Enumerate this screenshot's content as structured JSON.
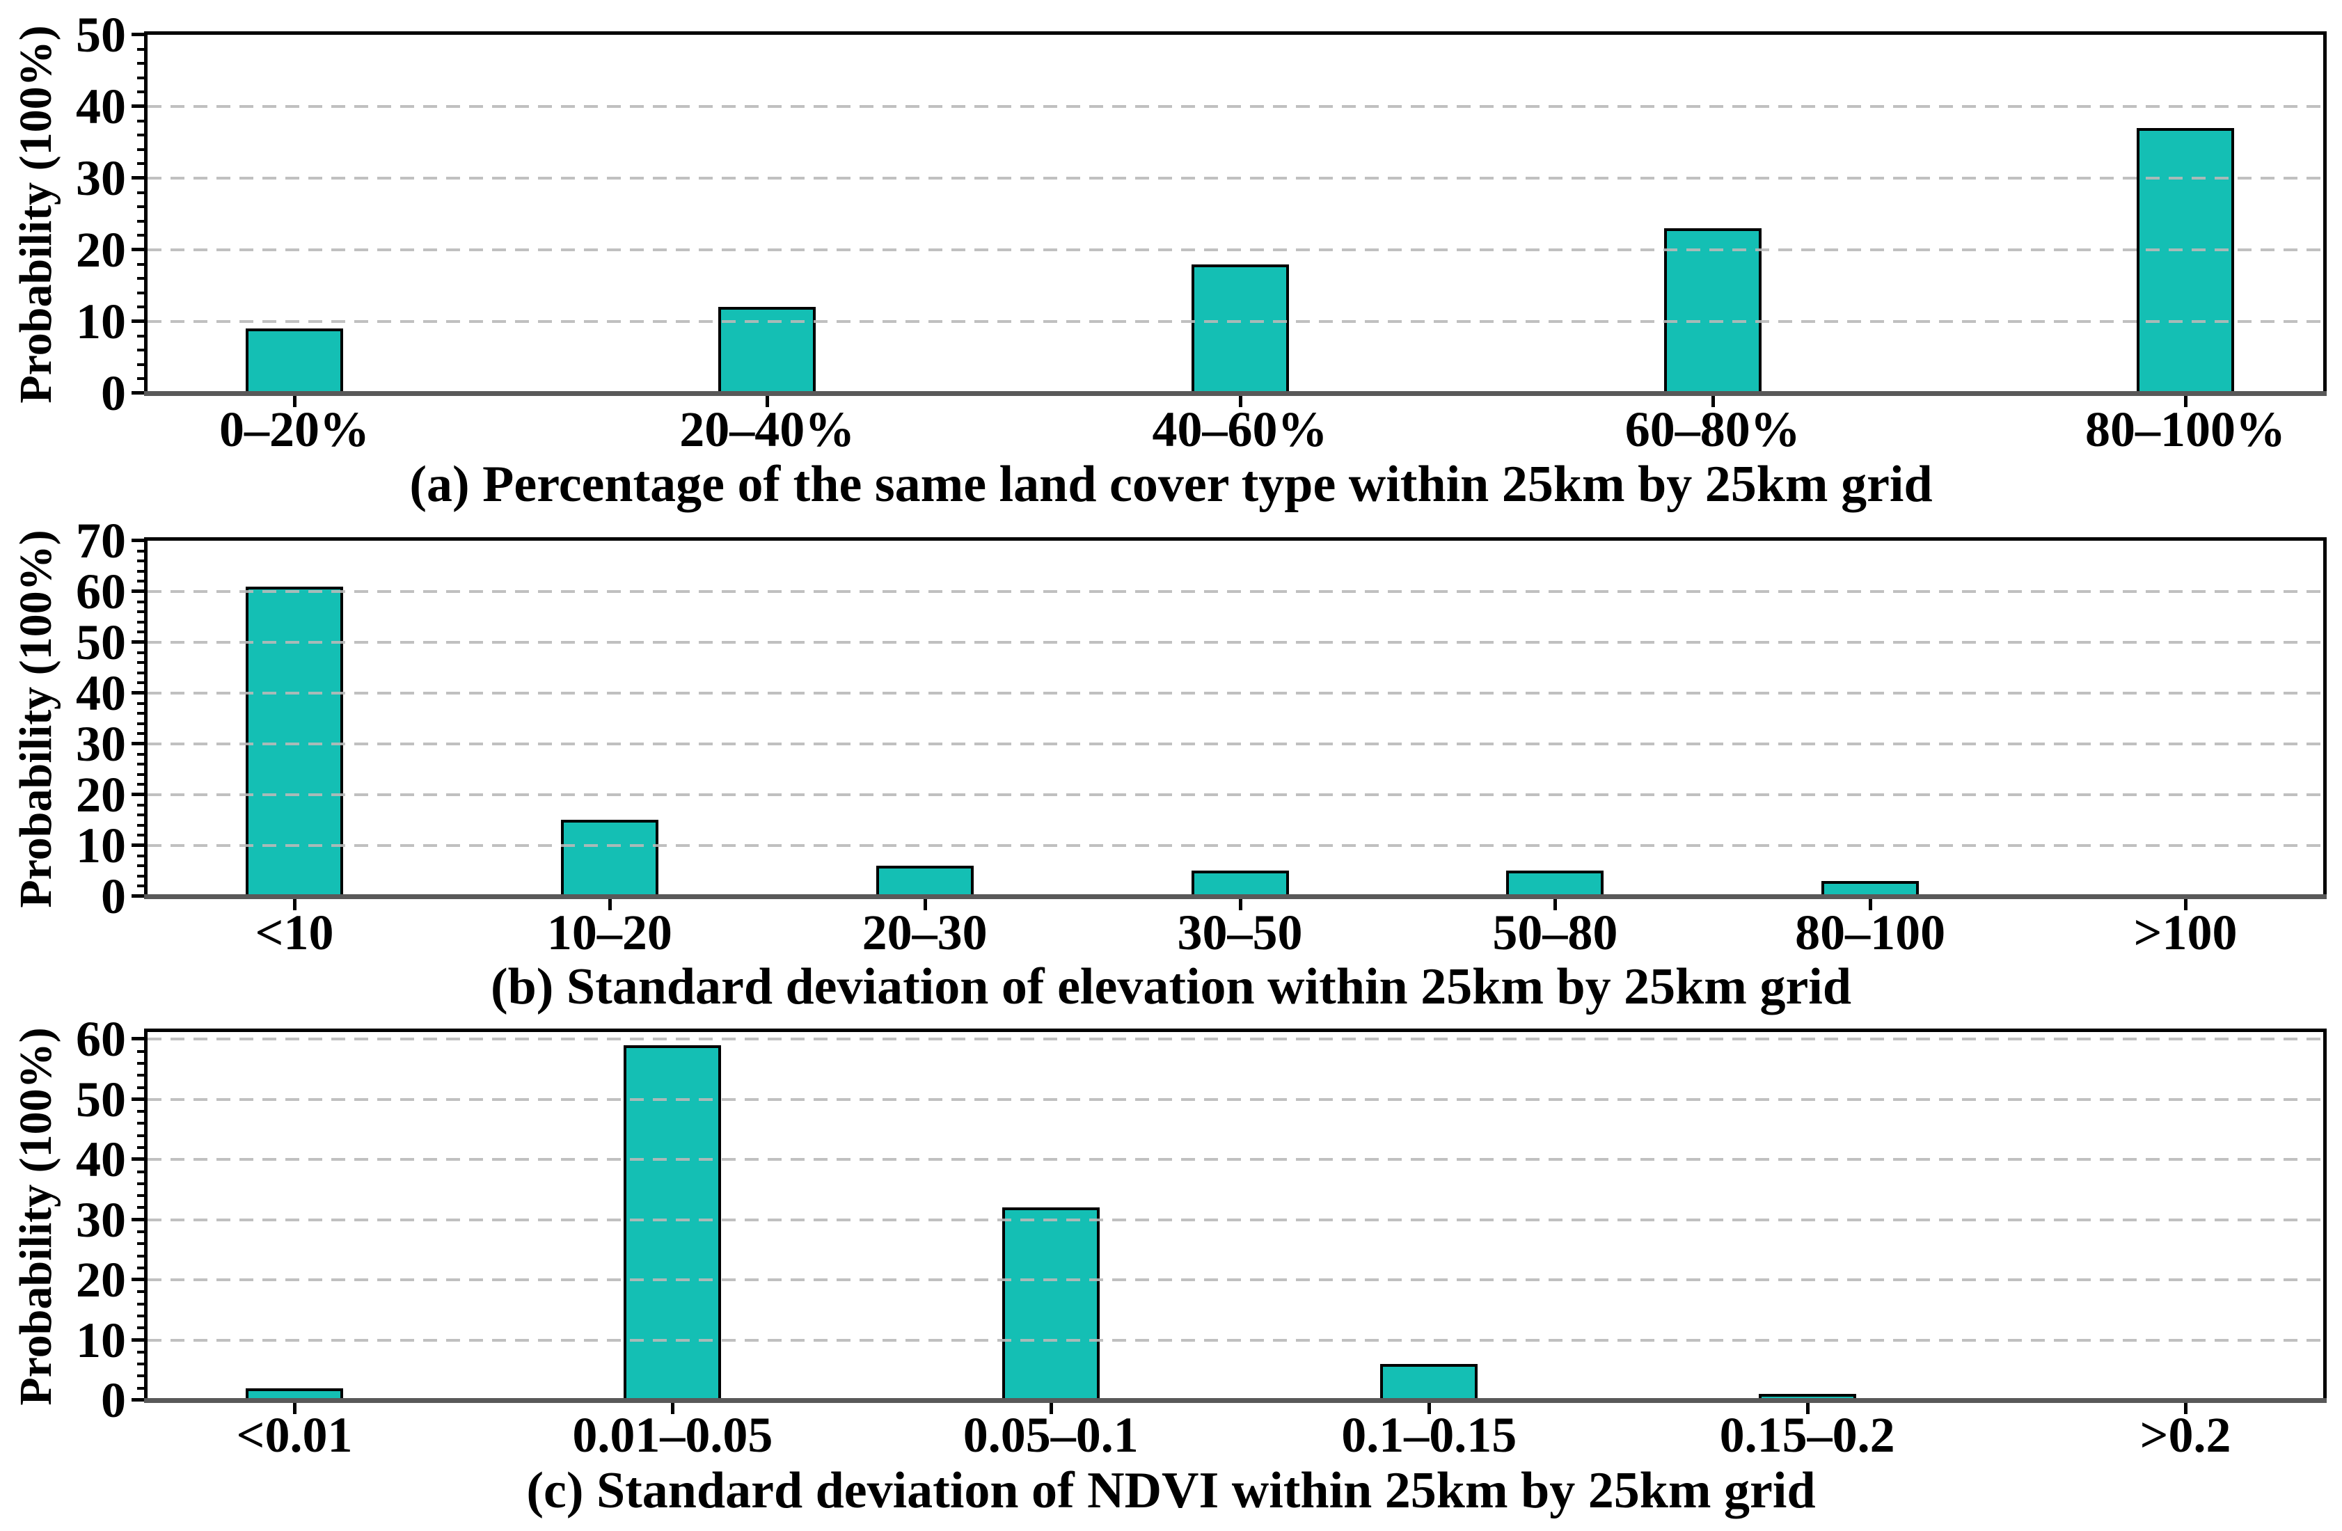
{
  "figure": {
    "ylabel": "Probability (100%)",
    "bar_color": "#14bfb4",
    "bar_edge_color": "#000000",
    "grid_color": "#b9b9b9",
    "background": "#ffffff"
  },
  "chart_data": [
    {
      "type": "bar",
      "caption": "(a) Percentage of the same land cover type within 25km by 25km grid",
      "categories": [
        "0–20%",
        "20–40%",
        "40–60%",
        "60–80%",
        "80–100%"
      ],
      "values": [
        9,
        12,
        18,
        23,
        37
      ],
      "xlabel": "",
      "ylabel": "Probability (100%)",
      "ylim": [
        0,
        50
      ],
      "yticks": [
        0,
        10,
        20,
        30,
        40,
        50
      ],
      "grid": "horizontal-dashed",
      "legend": "none"
    },
    {
      "type": "bar",
      "caption": "(b) Standard deviation of elevation within 25km by 25km grid",
      "categories": [
        "<10",
        "10–20",
        "20–30",
        "30–50",
        "50–80",
        "80–100",
        ">100"
      ],
      "values": [
        61,
        15,
        6,
        5,
        5,
        3,
        0.4
      ],
      "xlabel": "",
      "ylabel": "Probability (100%)",
      "ylim": [
        0,
        70
      ],
      "yticks": [
        0,
        10,
        20,
        30,
        40,
        50,
        60,
        70
      ],
      "grid": "horizontal-dashed",
      "legend": "none"
    },
    {
      "type": "bar",
      "caption": "(c) Standard deviation of NDVI within 25km by 25km grid",
      "categories": [
        "<0.01",
        "0.01–0.05",
        "0.05–0.1",
        "0.1–0.15",
        "0.15–0.2",
        ">0.2"
      ],
      "values": [
        2,
        59,
        32,
        6,
        1,
        0.3
      ],
      "xlabel": "",
      "ylabel": "Probability (100%)",
      "ylim": [
        0,
        60
      ],
      "yticks": [
        0,
        10,
        20,
        30,
        40,
        50,
        60
      ],
      "grid": "horizontal-dashed",
      "legend": "none"
    }
  ]
}
